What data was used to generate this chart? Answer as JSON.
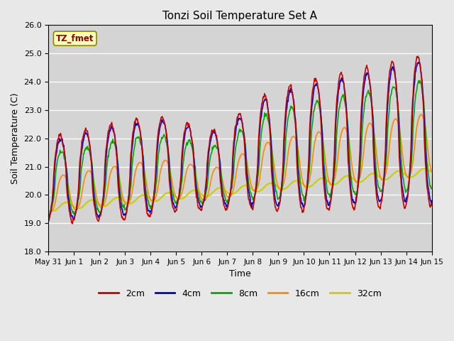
{
  "title": "Tonzi Soil Temperature Set A",
  "xlabel": "Time",
  "ylabel": "Soil Temperature (C)",
  "ylim": [
    18.0,
    26.0
  ],
  "yticks": [
    18.0,
    19.0,
    20.0,
    21.0,
    22.0,
    23.0,
    24.0,
    25.0,
    26.0
  ],
  "annotation_text": "TZ_fmet",
  "background_color": "#e8e8e8",
  "plot_bg_color": "#d4d4d4",
  "series": {
    "2cm": {
      "color": "#cc0000",
      "linewidth": 1.2
    },
    "4cm": {
      "color": "#0000cc",
      "linewidth": 1.2
    },
    "8cm": {
      "color": "#00aa00",
      "linewidth": 1.2
    },
    "16cm": {
      "color": "#ff8800",
      "linewidth": 1.2
    },
    "32cm": {
      "color": "#cccc00",
      "linewidth": 1.5
    }
  },
  "xtick_labels": [
    "May 31",
    "Jun 1",
    "Jun 2",
    "Jun 3",
    "Jun 4",
    "Jun 5",
    "Jun 6",
    "Jun 7",
    "Jun 8",
    "Jun 9",
    "Jun 10",
    "Jun 11",
    "Jun 12",
    "Jun 13",
    "Jun 14",
    "Jun 15"
  ]
}
